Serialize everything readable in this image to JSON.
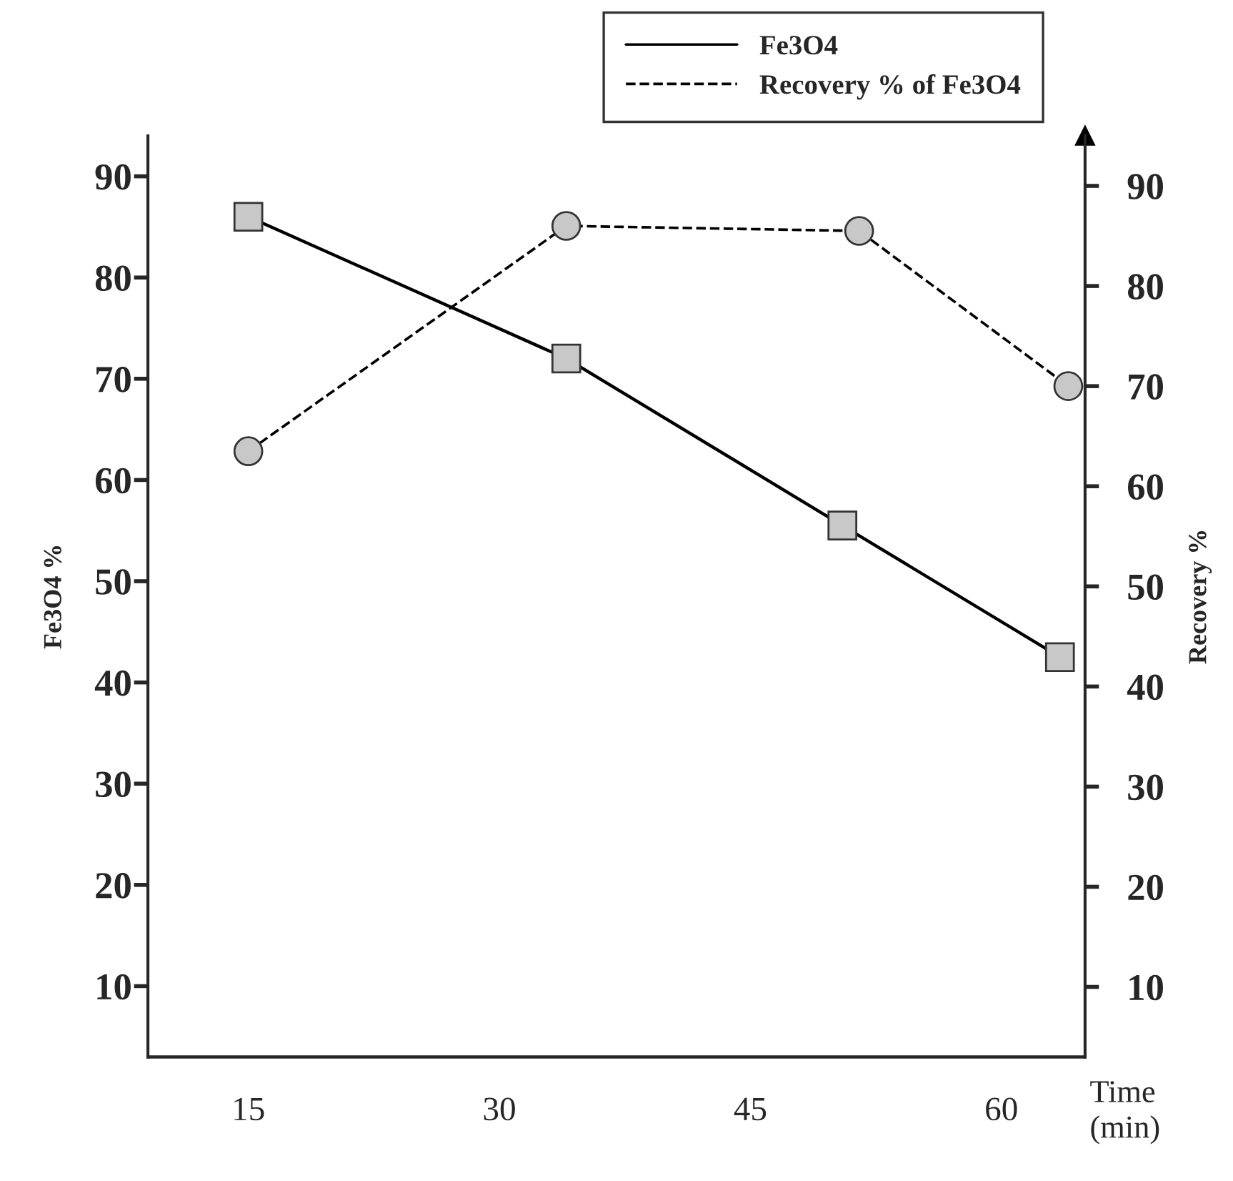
{
  "chart_data": {
    "type": "line",
    "xlabel": "Time\n(min)",
    "ylabel": "Fe3O4 %",
    "y2label": "Recovery %",
    "series": [
      {
        "name": "Fe3O4",
        "color": "#000000",
        "x": [
          15,
          34,
          50.5,
          63.5
        ],
        "values": [
          86,
          72,
          55.5,
          42.5
        ],
        "marker": "square",
        "line_style": "solid"
      },
      {
        "name": "Recovery % of Fe3O4",
        "color": "#000000",
        "axis": "y2",
        "x": [
          15,
          34,
          51.5,
          64
        ],
        "values": [
          63.5,
          86,
          85.5,
          70
        ],
        "marker": "circle",
        "line_style": "dashed"
      }
    ],
    "xlim": [
      9,
      65
    ],
    "xticks": [
      15,
      30,
      45,
      60
    ],
    "ylim": [
      3,
      94
    ],
    "yticks": [
      10,
      20,
      30,
      40,
      50,
      60,
      70,
      80,
      90
    ],
    "y2lim": [
      3,
      95
    ],
    "y2ticks": [
      10,
      20,
      30,
      40,
      50,
      60,
      70,
      80,
      90
    ],
    "grid": false,
    "legend": "top right"
  }
}
